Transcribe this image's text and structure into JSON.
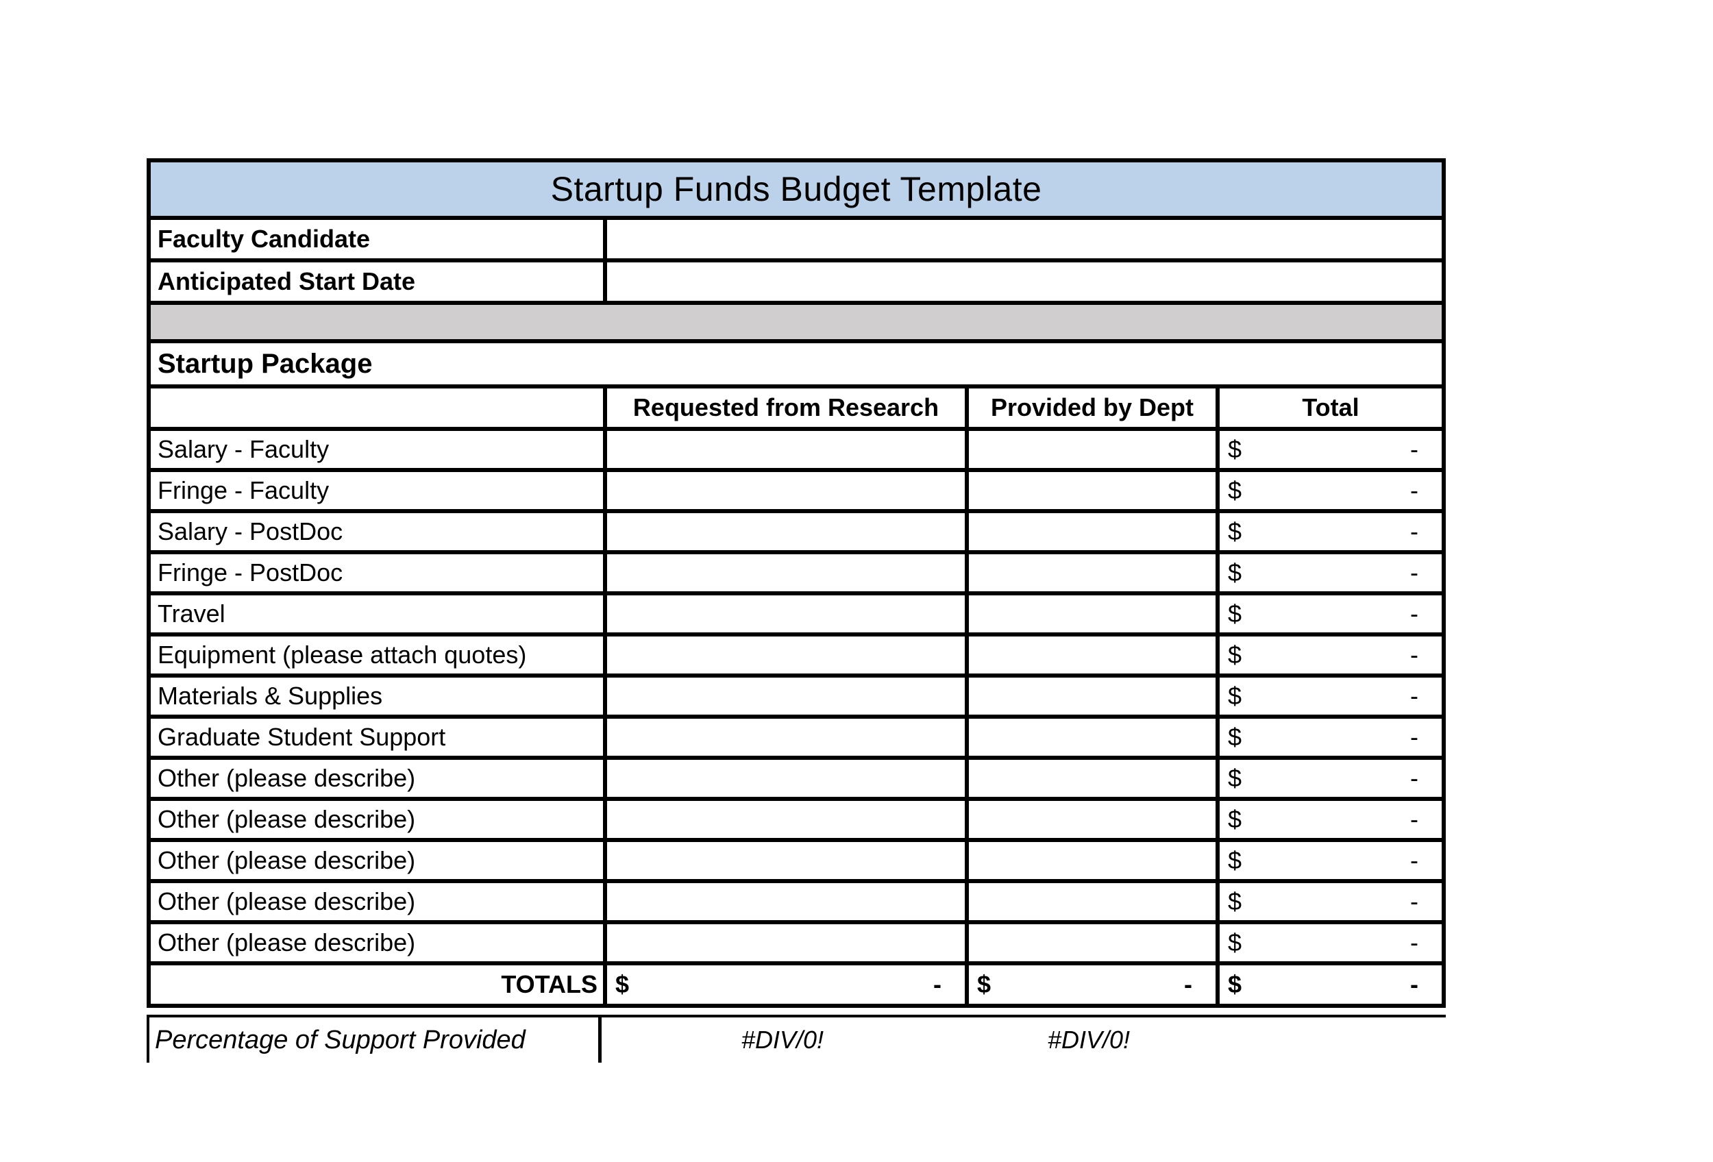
{
  "title": "Startup Funds Budget Template",
  "info": {
    "faculty_label": "Faculty Candidate",
    "faculty_value": "",
    "date_label": "Anticipated Start Date",
    "date_value": ""
  },
  "section": {
    "label": "Startup Package"
  },
  "columns": {
    "requested": "Requested from Research",
    "provided": "Provided by Dept",
    "total": "Total"
  },
  "items": [
    "Salary - Faculty",
    "Fringe - Faculty",
    "Salary - PostDoc",
    "Fringe - PostDoc",
    "Travel",
    "Equipment (please attach quotes)",
    "Materials & Supplies",
    "Graduate Student Support",
    "Other (please describe)",
    "Other (please describe)",
    "Other (please describe)",
    "Other (please describe)",
    "Other (please describe)"
  ],
  "money": {
    "symbol": "$",
    "dash": "-"
  },
  "totals": {
    "label": "TOTALS"
  },
  "percentage": {
    "label": "Percentage of Support Provided",
    "requested": "#DIV/0!",
    "provided": "#DIV/0!"
  },
  "colors": {
    "title_bg": "#BCD2EA",
    "band_bg": "#D0CECE",
    "border": "#000000"
  }
}
